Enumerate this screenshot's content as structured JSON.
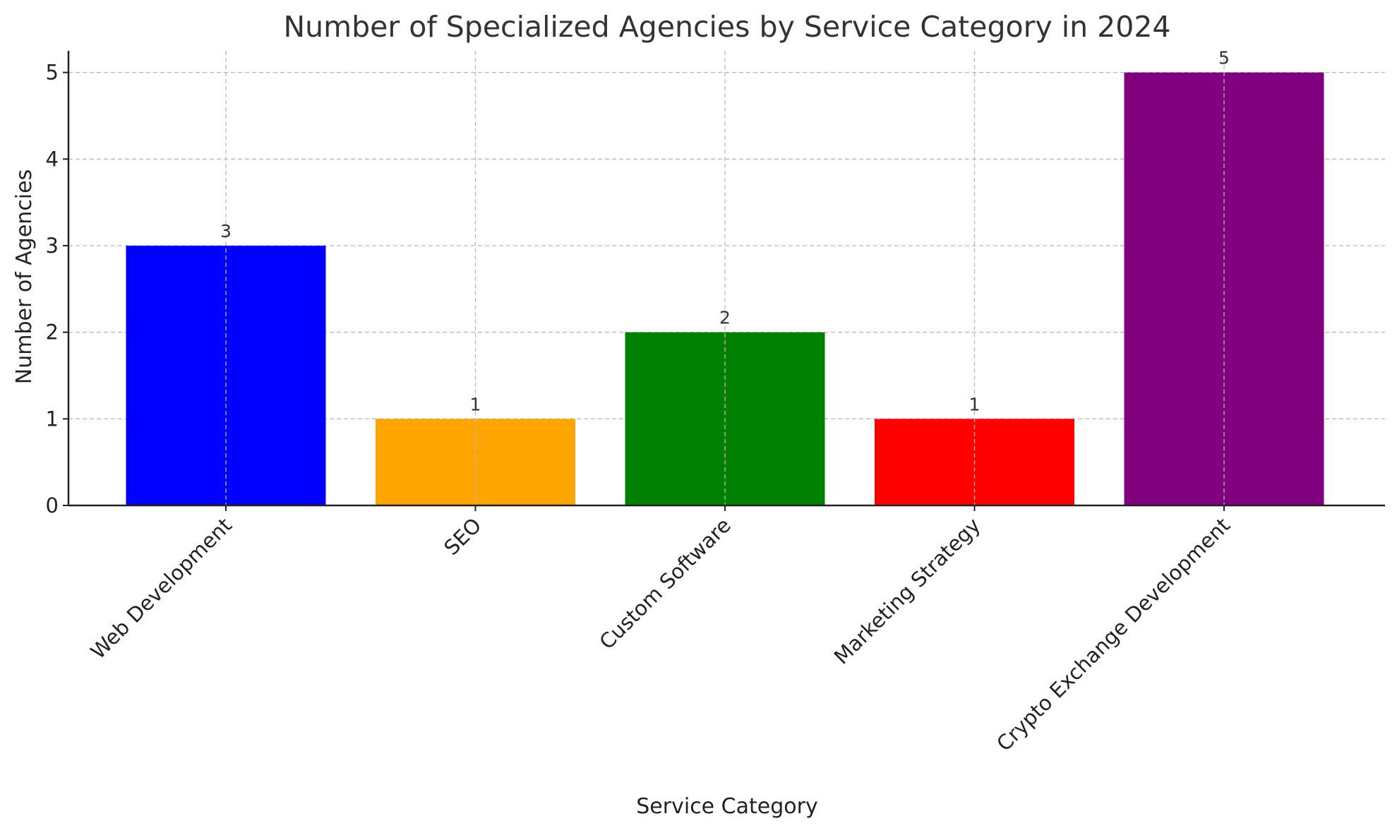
{
  "chart_data": {
    "type": "bar",
    "title": "Number of Specialized Agencies by Service Category in 2024",
    "xlabel": "Service Category",
    "ylabel": "Number of Agencies",
    "categories": [
      "Web Development",
      "SEO",
      "Custom Software",
      "Marketing Strategy",
      "Crypto Exchange Development"
    ],
    "values": [
      3,
      1,
      2,
      1,
      5
    ],
    "colors": [
      "#0000ff",
      "#ffa500",
      "#008000",
      "#ff0000",
      "#800080"
    ],
    "data_labels": [
      "3",
      "1",
      "2",
      "1",
      "5"
    ],
    "ylim": [
      0,
      5.25
    ],
    "yticks": [
      0,
      1,
      2,
      3,
      4,
      5
    ],
    "grid": true,
    "legend": "none"
  }
}
